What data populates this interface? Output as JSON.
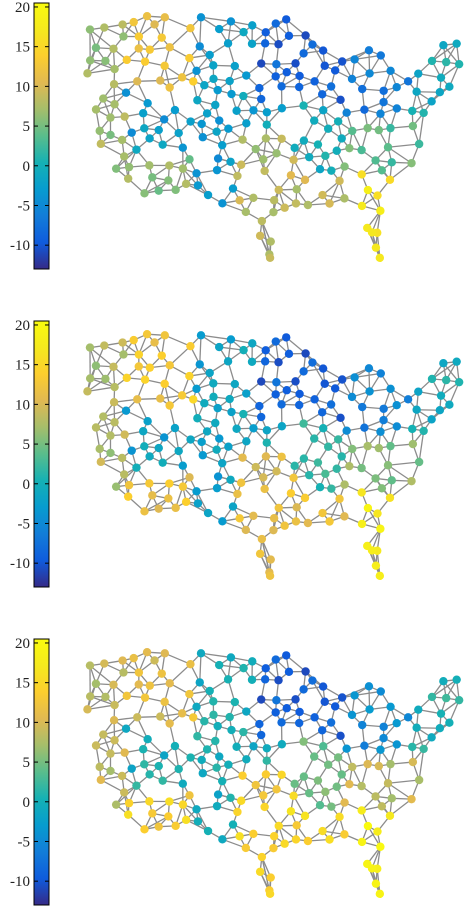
{
  "chart_data": [
    {
      "type": "scatter",
      "description_kind": "graph-signal-on-map",
      "colorbar": {
        "colormap": "parula",
        "range": [
          -13,
          20.5
        ],
        "ticks": [
          -10,
          -5,
          0,
          5,
          10,
          15,
          20
        ],
        "tick_labels": [
          "-10",
          "-5",
          "0",
          "5",
          "10",
          "15",
          "20"
        ]
      },
      "node_values": {
        "northwest": 12,
        "north-central": -9,
        "great-lakes": -7,
        "northeast": 0,
        "west-coast": 7,
        "mountain": -3,
        "plains": -2,
        "midwest": 0,
        "south-west": 6,
        "southern-plains": 8,
        "gulf-coast": 9,
        "florida": 17,
        "southeast": 4
      },
      "edge_color": "#8c8c8c"
    },
    {
      "type": "scatter",
      "description_kind": "graph-signal-on-map",
      "colorbar": {
        "colormap": "parula",
        "range": [
          -13,
          20.5
        ],
        "ticks": [
          -10,
          -5,
          0,
          5,
          10,
          15,
          20
        ],
        "tick_labels": [
          "-10",
          "-5",
          "0",
          "5",
          "10",
          "15",
          "20"
        ]
      },
      "node_values": {
        "northwest": 13,
        "north-central": -9,
        "great-lakes": -6,
        "northeast": 0,
        "west-coast": 8,
        "mountain": -2,
        "plains": -1,
        "midwest": 2,
        "south-west": 12,
        "southern-plains": 11,
        "gulf-coast": 12,
        "florida": 18,
        "southeast": 6
      },
      "edge_color": "#8c8c8c"
    },
    {
      "type": "scatter",
      "description_kind": "graph-signal-on-map",
      "colorbar": {
        "colormap": "parula",
        "range": [
          -13,
          20.5
        ],
        "ticks": [
          -10,
          -5,
          0,
          5,
          10,
          15,
          20
        ],
        "tick_labels": [
          "-10",
          "-5",
          "0",
          "5",
          "10",
          "15",
          "20"
        ]
      },
      "node_values": {
        "northwest": 11,
        "north-central": -9,
        "great-lakes": -5,
        "northeast": 1,
        "west-coast": 9,
        "mountain": 0,
        "plains": 0,
        "midwest": 5,
        "south-west": 14,
        "southern-plains": 14,
        "gulf-coast": 15,
        "florida": 19,
        "southeast": 9
      },
      "edge_color": "#8c8c8c"
    }
  ]
}
